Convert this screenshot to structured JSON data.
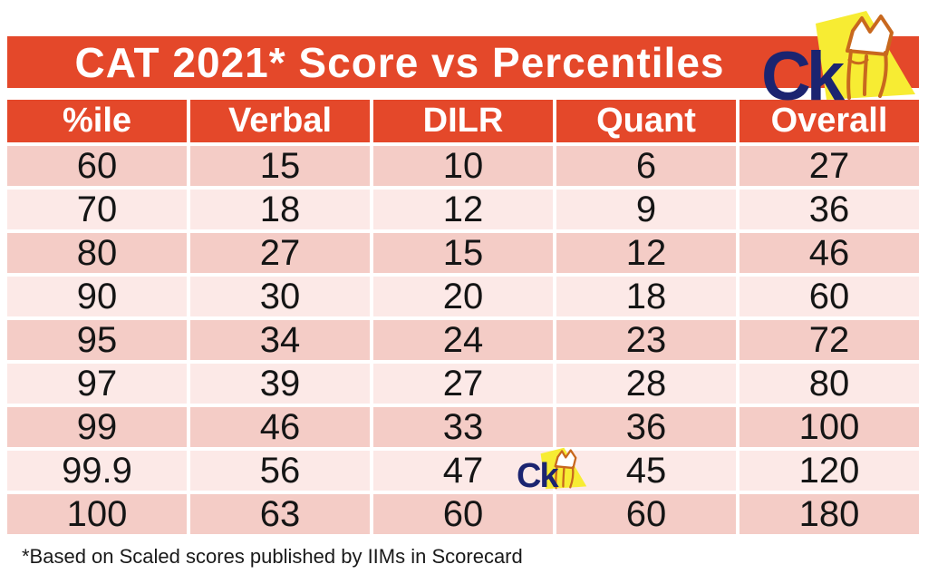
{
  "header": {
    "title": "CAT 2021* Score vs Percentiles"
  },
  "logo": {
    "text": "Ck"
  },
  "table": {
    "columns": [
      "%ile",
      "Verbal",
      "DILR",
      "Quant",
      "Overall"
    ],
    "rows": [
      [
        "60",
        "15",
        "10",
        "6",
        "27"
      ],
      [
        "70",
        "18",
        "12",
        "9",
        "36"
      ],
      [
        "80",
        "27",
        "15",
        "12",
        "46"
      ],
      [
        "90",
        "30",
        "20",
        "18",
        "60"
      ],
      [
        "95",
        "34",
        "24",
        "23",
        "72"
      ],
      [
        "97",
        "39",
        "27",
        "28",
        "80"
      ],
      [
        "99",
        "46",
        "33",
        "36",
        "100"
      ],
      [
        "99.9",
        "56",
        "47",
        "45",
        "120"
      ],
      [
        "100",
        "63",
        "60",
        "60",
        "180"
      ]
    ]
  },
  "footnote": "*Based on Scaled scores published by IIMs in Scorecard",
  "colors": {
    "accent_orange": "#E4482A",
    "row_dark_pink": "#F4CCC6",
    "row_light_pink": "#FCE9E7",
    "logo_navy": "#1B2470",
    "logo_yellow": "#F7EC33",
    "fist_outline_orange": "#C8681E",
    "header_text": "#FFFFFF",
    "body_text": "#151515"
  },
  "chart_data": {
    "type": "table",
    "title": "CAT 2021* Score vs Percentiles",
    "columns": [
      "%ile",
      "Verbal",
      "DILR",
      "Quant",
      "Overall"
    ],
    "rows": [
      [
        60,
        15,
        10,
        6,
        27
      ],
      [
        70,
        18,
        12,
        9,
        36
      ],
      [
        80,
        27,
        15,
        12,
        46
      ],
      [
        90,
        30,
        20,
        18,
        60
      ],
      [
        95,
        34,
        24,
        23,
        72
      ],
      [
        97,
        39,
        27,
        28,
        80
      ],
      [
        99,
        46,
        33,
        36,
        100
      ],
      [
        99.9,
        56,
        47,
        45,
        120
      ],
      [
        100,
        63,
        60,
        60,
        180
      ]
    ],
    "footnote": "*Based on Scaled scores published by IIMs in Scorecard"
  }
}
